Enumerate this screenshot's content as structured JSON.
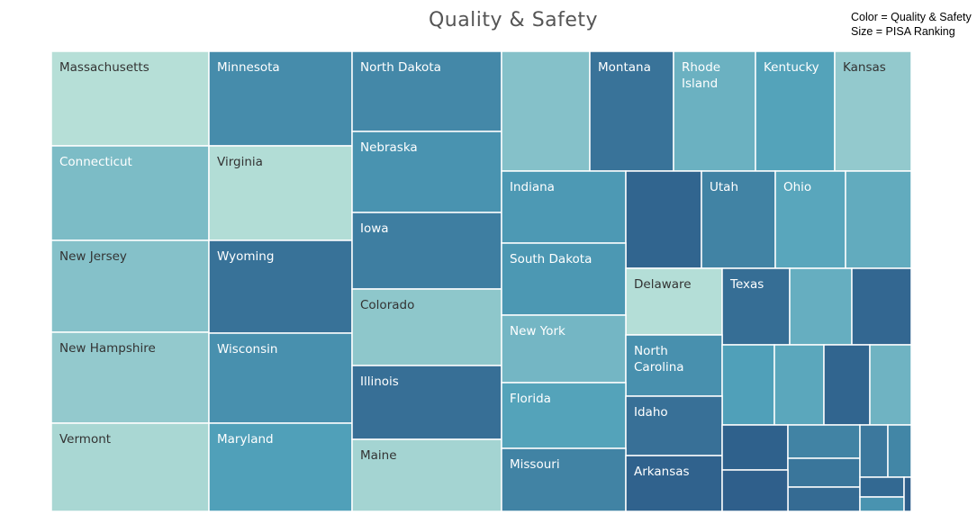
{
  "chart_data": {
    "type": "treemap",
    "title": "Quality & Safety",
    "legend": {
      "color_line": "Color = Quality & Safety",
      "size_line": "Size = PISA Ranking"
    },
    "color_scale": {
      "light": "#bfe5da",
      "dark": "#2e5e8a"
    },
    "tiles": [
      {
        "label": "Massachusetts",
        "quality_safety": 0.04
      },
      {
        "label": "Connecticut",
        "quality_safety": 0.3
      },
      {
        "label": "New Jersey",
        "quality_safety": 0.26
      },
      {
        "label": "New Hampshire",
        "quality_safety": 0.2
      },
      {
        "label": "Vermont",
        "quality_safety": 0.1
      },
      {
        "label": "Minnesota",
        "quality_safety": 0.65
      },
      {
        "label": "Virginia",
        "quality_safety": 0.06
      },
      {
        "label": "Wyoming",
        "quality_safety": 0.85
      },
      {
        "label": "Wisconsin",
        "quality_safety": 0.62
      },
      {
        "label": "Maryland",
        "quality_safety": 0.5
      },
      {
        "label": "North Dakota",
        "quality_safety": 0.68
      },
      {
        "label": "Nebraska",
        "quality_safety": 0.6
      },
      {
        "label": "Iowa",
        "quality_safety": 0.76
      },
      {
        "label": "Colorado",
        "quality_safety": 0.22
      },
      {
        "label": "Illinois",
        "quality_safety": 0.87
      },
      {
        "label": "Maine",
        "quality_safety": 0.12
      },
      {
        "label": "",
        "quality_safety": 0.26
      },
      {
        "label": "Montana",
        "quality_safety": 0.84
      },
      {
        "label": "Rhode Island",
        "quality_safety": 0.38
      },
      {
        "label": "Kentucky",
        "quality_safety": 0.48
      },
      {
        "label": "Kansas",
        "quality_safety": 0.2
      },
      {
        "label": "Indiana",
        "quality_safety": 0.55
      },
      {
        "label": "",
        "quality_safety": 0.95
      },
      {
        "label": "Utah",
        "quality_safety": 0.72
      },
      {
        "label": "Ohio",
        "quality_safety": 0.46
      },
      {
        "label": "",
        "quality_safety": 0.42
      },
      {
        "label": "South Dakota",
        "quality_safety": 0.56
      },
      {
        "label": "Delaware",
        "quality_safety": 0.05
      },
      {
        "label": "Texas",
        "quality_safety": 0.88
      },
      {
        "label": "",
        "quality_safety": 0.4
      },
      {
        "label": "",
        "quality_safety": 0.93
      },
      {
        "label": "New York",
        "quality_safety": 0.34
      },
      {
        "label": "North Carolina",
        "quality_safety": 0.62
      },
      {
        "label": "",
        "quality_safety": 0.5
      },
      {
        "label": "",
        "quality_safety": 0.45
      },
      {
        "label": "",
        "quality_safety": 0.95
      },
      {
        "label": "",
        "quality_safety": 0.36
      },
      {
        "label": "Florida",
        "quality_safety": 0.48
      },
      {
        "label": "Idaho",
        "quality_safety": 0.86
      },
      {
        "label": "Missouri",
        "quality_safety": 0.72
      },
      {
        "label": "Arkansas",
        "quality_safety": 0.97
      },
      {
        "label": "",
        "quality_safety": 0.98
      },
      {
        "label": "",
        "quality_safety": 0.72
      },
      {
        "label": "",
        "quality_safety": 0.82
      },
      {
        "label": "",
        "quality_safety": 0.9
      },
      {
        "label": "",
        "quality_safety": 0.99
      },
      {
        "label": "",
        "quality_safety": 0.8
      },
      {
        "label": "",
        "quality_safety": 0.7
      },
      {
        "label": "",
        "quality_safety": 0.92
      },
      {
        "label": "",
        "quality_safety": 0.6
      },
      {
        "label": "",
        "quality_safety": 1.0
      }
    ]
  }
}
